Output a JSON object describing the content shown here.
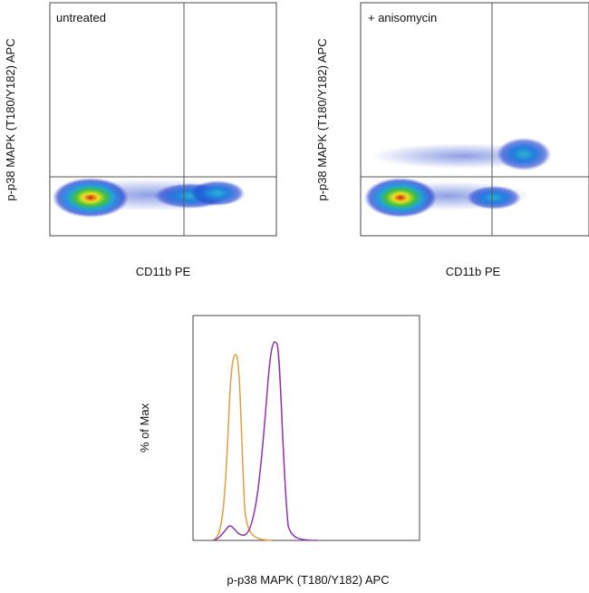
{
  "panels": [
    {
      "label": "untreated",
      "x_label": "CD11b PE",
      "y_label": "p-p38 MAPK (T180/Y182) APC"
    },
    {
      "label": "+ anisomycin",
      "x_label": "CD11b PE",
      "y_label": "p-p38 MAPK (T180/Y182) APC"
    }
  ],
  "histogram": {
    "x_label": "p-p38 MAPK (T180/Y182) APC",
    "y_label": "% of Max"
  }
}
